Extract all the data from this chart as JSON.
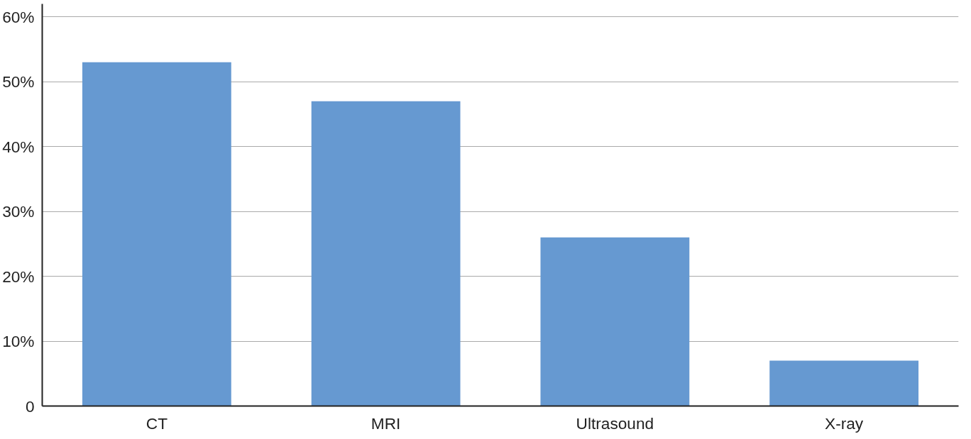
{
  "chart_data": {
    "type": "bar",
    "categories": [
      "CT",
      "MRI",
      "Ultrasound",
      "X-ray"
    ],
    "values": [
      53,
      47,
      26,
      7
    ],
    "color": "#6699d1",
    "ylim": [
      0,
      62
    ],
    "yticks": [
      {
        "value": 0,
        "label": "0"
      },
      {
        "value": 10,
        "label": "10%"
      },
      {
        "value": 20,
        "label": "20%"
      },
      {
        "value": 30,
        "label": "30%"
      },
      {
        "value": 40,
        "label": "40%"
      },
      {
        "value": 50,
        "label": "50%"
      },
      {
        "value": 60,
        "label": "60%"
      }
    ],
    "grid": "y"
  }
}
